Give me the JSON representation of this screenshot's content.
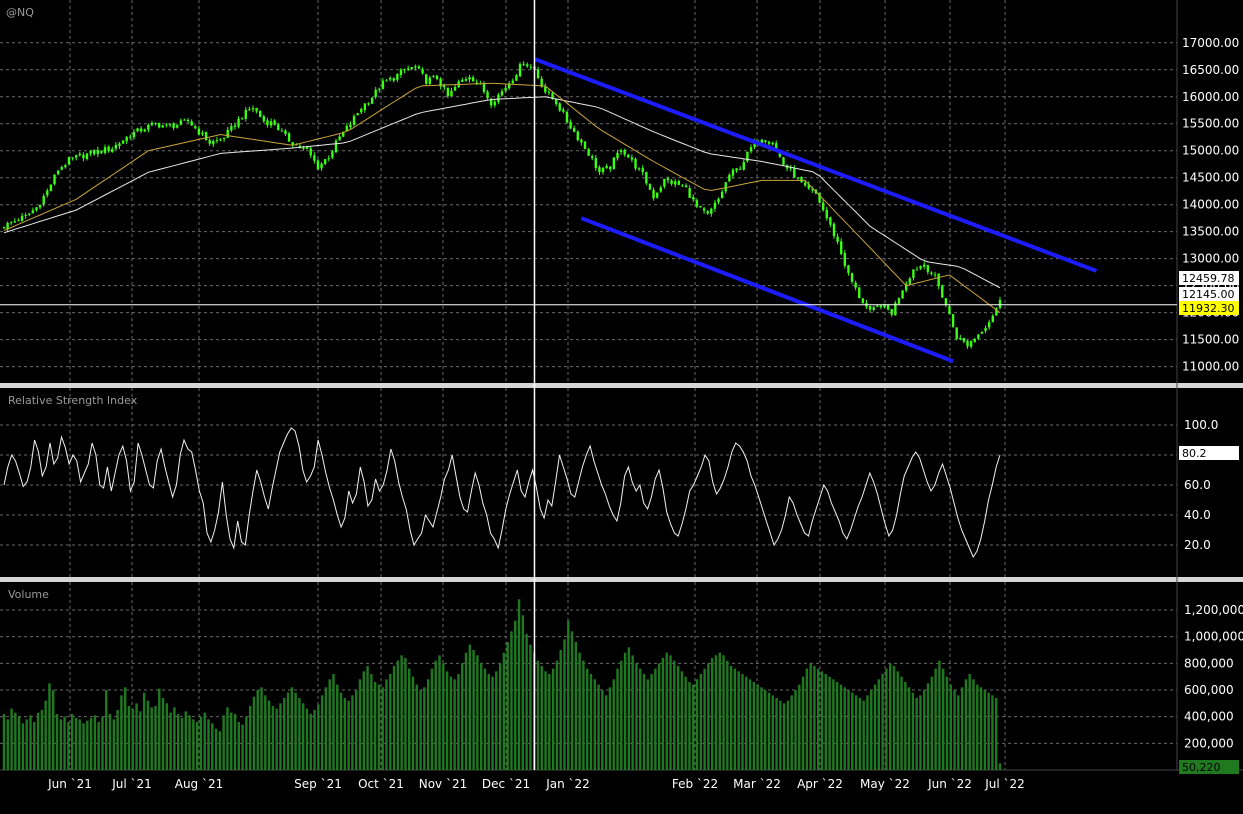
{
  "chart_data": {
    "type": "candlestick",
    "symbol": "@NQ",
    "x_axis_labels": [
      "Jun `21",
      "Jul `21",
      "Aug `21",
      "Sep `21",
      "Oct `21",
      "Nov `21",
      "Dec `21",
      "Jan `22",
      "Feb `22",
      "Mar `22",
      "Apr `22",
      "May `22",
      "Jun `22",
      "Jul `22"
    ],
    "price_panel": {
      "ylim": [
        10900,
        17200
      ],
      "y_ticks": [
        11000,
        11500,
        12000,
        12500,
        13000,
        13500,
        14000,
        14500,
        15000,
        15500,
        16000,
        16500,
        17000
      ],
      "y_tick_labels": [
        "11000.00",
        "11500.00",
        "12000.00",
        "12500.00",
        "13000.00",
        "13500.00",
        "14000.00",
        "14500.00",
        "15000.00",
        "15500.00",
        "16000.00",
        "16500.00",
        "17000.00"
      ],
      "price_points": [
        [
          0,
          13600
        ],
        [
          3,
          13700
        ],
        [
          6,
          13780
        ],
        [
          9,
          13950
        ],
        [
          12,
          14250
        ],
        [
          15,
          14650
        ],
        [
          18,
          14820
        ],
        [
          21,
          14900
        ],
        [
          24,
          14950
        ],
        [
          27,
          15000
        ],
        [
          30,
          15050
        ],
        [
          33,
          15200
        ],
        [
          36,
          15330
        ],
        [
          39,
          15420
        ],
        [
          42,
          15500
        ],
        [
          45,
          15450
        ],
        [
          48,
          15480
        ],
        [
          51,
          15550
        ],
        [
          54,
          15350
        ],
        [
          57,
          15150
        ],
        [
          60,
          15200
        ],
        [
          63,
          15400
        ],
        [
          66,
          15650
        ],
        [
          69,
          15800
        ],
        [
          72,
          15550
        ],
        [
          75,
          15500
        ],
        [
          78,
          15250
        ],
        [
          81,
          15100
        ],
        [
          84,
          15000
        ],
        [
          87,
          14700
        ],
        [
          90,
          14900
        ],
        [
          93,
          15250
        ],
        [
          96,
          15500
        ],
        [
          99,
          15800
        ],
        [
          102,
          16000
        ],
        [
          105,
          16250
        ],
        [
          108,
          16350
        ],
        [
          111,
          16500
        ],
        [
          114,
          16550
        ],
        [
          117,
          16300
        ],
        [
          120,
          16350
        ],
        [
          123,
          16000
        ],
        [
          126,
          16250
        ],
        [
          129,
          16400
        ],
        [
          132,
          16200
        ],
        [
          135,
          15900
        ],
        [
          138,
          16100
        ],
        [
          141,
          16350
        ],
        [
          144,
          16650
        ],
        [
          147,
          16500
        ],
        [
          150,
          16100
        ],
        [
          153,
          15900
        ],
        [
          156,
          15550
        ],
        [
          159,
          15250
        ],
        [
          162,
          14950
        ],
        [
          165,
          14600
        ],
        [
          168,
          14700
        ],
        [
          171,
          15050
        ],
        [
          174,
          14800
        ],
        [
          177,
          14550
        ],
        [
          180,
          14150
        ],
        [
          183,
          14450
        ],
        [
          186,
          14400
        ],
        [
          189,
          14300
        ],
        [
          192,
          13950
        ],
        [
          195,
          13800
        ],
        [
          198,
          14100
        ],
        [
          201,
          14550
        ],
        [
          204,
          14700
        ],
        [
          207,
          15050
        ],
        [
          210,
          15250
        ],
        [
          213,
          15150
        ],
        [
          216,
          14750
        ],
        [
          219,
          14550
        ],
        [
          222,
          14300
        ],
        [
          225,
          14200
        ],
        [
          228,
          13750
        ],
        [
          231,
          13300
        ],
        [
          234,
          12700
        ],
        [
          237,
          12300
        ],
        [
          240,
          12000
        ],
        [
          243,
          12150
        ],
        [
          246,
          12000
        ],
        [
          249,
          12450
        ],
        [
          252,
          12800
        ],
        [
          255,
          12900
        ],
        [
          258,
          12650
        ],
        [
          261,
          12150
        ],
        [
          264,
          11550
        ],
        [
          267,
          11400
        ],
        [
          270,
          11600
        ],
        [
          273,
          11850
        ],
        [
          276,
          12200
        ]
      ],
      "sma_short_points": [
        [
          0,
          13520
        ],
        [
          20,
          14100
        ],
        [
          40,
          15000
        ],
        [
          60,
          15300
        ],
        [
          80,
          15100
        ],
        [
          95,
          15350
        ],
        [
          115,
          16200
        ],
        [
          135,
          16250
        ],
        [
          150,
          16200
        ],
        [
          165,
          15400
        ],
        [
          180,
          14800
        ],
        [
          195,
          14250
        ],
        [
          210,
          14450
        ],
        [
          222,
          14450
        ],
        [
          235,
          13550
        ],
        [
          250,
          12500
        ],
        [
          262,
          12700
        ],
        [
          276,
          12000
        ]
      ],
      "sma_long_points": [
        [
          0,
          13480
        ],
        [
          20,
          13900
        ],
        [
          40,
          14600
        ],
        [
          60,
          14950
        ],
        [
          80,
          15050
        ],
        [
          95,
          15150
        ],
        [
          115,
          15700
        ],
        [
          135,
          15950
        ],
        [
          150,
          16000
        ],
        [
          165,
          15800
        ],
        [
          180,
          15350
        ],
        [
          195,
          14950
        ],
        [
          210,
          14800
        ],
        [
          225,
          14600
        ],
        [
          240,
          13600
        ],
        [
          255,
          12950
        ],
        [
          265,
          12850
        ],
        [
          276,
          12460
        ]
      ],
      "trendline_upper": [
        [
          147,
          16700
        ],
        [
          275,
          13200
        ]
      ],
      "trendline_lower": [
        [
          160,
          13750
        ],
        [
          263,
          11100
        ]
      ],
      "last_values": [
        "12459.78",
        "12145.00",
        "11932.30"
      ],
      "horizontal_line": 12145,
      "vertical_line_bar": 147
    },
    "rsi_panel": {
      "title": "Relative Strength Index",
      "ylim": [
        0,
        110
      ],
      "y_ticks": [
        20,
        40,
        60,
        80,
        100
      ],
      "y_tick_labels": [
        "20.0",
        "40.0",
        "60.0",
        "80.0",
        "100.0"
      ],
      "values": [
        60,
        72,
        80,
        76,
        68,
        59,
        62,
        72,
        90,
        82,
        66,
        72,
        88,
        74,
        78,
        92,
        85,
        74,
        80,
        76,
        62,
        68,
        74,
        88,
        80,
        60,
        58,
        72,
        56,
        68,
        80,
        86,
        76,
        56,
        62,
        88,
        80,
        70,
        60,
        58,
        76,
        84,
        72,
        62,
        52,
        60,
        80,
        90,
        84,
        82,
        70,
        56,
        48,
        28,
        22,
        30,
        42,
        62,
        40,
        24,
        18,
        36,
        22,
        20,
        40,
        56,
        70,
        62,
        52,
        44,
        58,
        70,
        82,
        88,
        94,
        98,
        96,
        86,
        70,
        62,
        66,
        72,
        90,
        80,
        68,
        58,
        50,
        40,
        32,
        38,
        56,
        48,
        54,
        72,
        62,
        46,
        50,
        64,
        56,
        60,
        70,
        84,
        76,
        62,
        52,
        44,
        30,
        20,
        24,
        28,
        40,
        36,
        32,
        42,
        52,
        64,
        70,
        80,
        66,
        52,
        44,
        42,
        56,
        68,
        60,
        48,
        40,
        28,
        24,
        18,
        30,
        44,
        54,
        62,
        70,
        56,
        52,
        62,
        70,
        58,
        44,
        38,
        50,
        46,
        62,
        80,
        72,
        64,
        54,
        52,
        62,
        72,
        80,
        86,
        76,
        68,
        60,
        54,
        46,
        40,
        36,
        48,
        66,
        72,
        62,
        56,
        60,
        48,
        44,
        52,
        64,
        70,
        58,
        42,
        34,
        28,
        26,
        34,
        44,
        56,
        60,
        66,
        72,
        80,
        76,
        62,
        54,
        58,
        64,
        72,
        82,
        88,
        86,
        82,
        76,
        66,
        60,
        52,
        44,
        36,
        28,
        20,
        24,
        30,
        40,
        52,
        48,
        40,
        34,
        28,
        26,
        36,
        44,
        52,
        60,
        56,
        48,
        42,
        36,
        28,
        24,
        30,
        38,
        46,
        52,
        60,
        68,
        62,
        54,
        44,
        34,
        26,
        30,
        40,
        54,
        66,
        72,
        78,
        82,
        78,
        70,
        62,
        56,
        60,
        68,
        74,
        66,
        58,
        48,
        38,
        30,
        24,
        18,
        12,
        16,
        24,
        36,
        50,
        60,
        72,
        80
      ],
      "last_value_label": "80.2"
    },
    "volume_panel": {
      "title": "Volume",
      "ylim": [
        0,
        1350000
      ],
      "y_ticks": [
        200000,
        400000,
        600000,
        800000,
        1000000,
        1200000
      ],
      "y_tick_labels": [
        "200,000",
        "400,000",
        "600,000",
        "800,000",
        "1,000,000",
        "1,200,000"
      ],
      "values": [
        420000,
        380000,
        460000,
        430000,
        400000,
        350000,
        380000,
        410000,
        360000,
        430000,
        450000,
        520000,
        650000,
        600000,
        420000,
        380000,
        400000,
        360000,
        420000,
        390000,
        380000,
        350000,
        370000,
        390000,
        410000,
        360000,
        400000,
        600000,
        420000,
        380000,
        450000,
        560000,
        620000,
        480000,
        460000,
        500000,
        440000,
        580000,
        520000,
        470000,
        480000,
        610000,
        540000,
        500000,
        430000,
        470000,
        420000,
        390000,
        440000,
        410000,
        380000,
        360000,
        400000,
        430000,
        380000,
        350000,
        310000,
        290000,
        410000,
        470000,
        430000,
        420000,
        360000,
        340000,
        400000,
        480000,
        550000,
        600000,
        620000,
        560000,
        520000,
        480000,
        460000,
        500000,
        540000,
        580000,
        620000,
        580000,
        540000,
        500000,
        460000,
        420000,
        450000,
        490000,
        560000,
        620000,
        680000,
        720000,
        640000,
        580000,
        540000,
        520000,
        560000,
        600000,
        680000,
        740000,
        780000,
        720000,
        660000,
        640000,
        620000,
        680000,
        720000,
        780000,
        820000,
        860000,
        840000,
        760000,
        700000,
        640000,
        600000,
        620000,
        680000,
        760000,
        820000,
        860000,
        800000,
        740000,
        700000,
        680000,
        720000,
        800000,
        880000,
        940000,
        900000,
        860000,
        800000,
        760000,
        720000,
        700000,
        740000,
        800000,
        880000,
        960000,
        1040000,
        1120000,
        1280000,
        1160000,
        1020000,
        940000,
        880000,
        820000,
        780000,
        740000,
        720000,
        760000,
        820000,
        900000,
        980000,
        1120000,
        1040000,
        960000,
        880000,
        820000,
        760000,
        720000,
        680000,
        640000,
        600000,
        560000,
        620000,
        680000,
        760000,
        820000,
        880000,
        920000,
        860000,
        800000,
        760000,
        720000,
        680000,
        720000,
        760000,
        800000,
        840000,
        880000,
        860000,
        820000,
        780000,
        740000,
        700000,
        660000,
        640000,
        680000,
        720000,
        760000,
        800000,
        840000,
        860000,
        880000,
        860000,
        820000,
        780000,
        760000,
        740000,
        720000,
        700000,
        680000,
        660000,
        640000,
        620000,
        600000,
        580000,
        560000,
        540000,
        520000,
        500000,
        520000,
        560000,
        600000,
        640000,
        700000,
        760000,
        800000,
        780000,
        760000,
        740000,
        720000,
        700000,
        680000,
        660000,
        640000,
        620000,
        600000,
        580000,
        560000,
        540000,
        520000,
        560000,
        600000,
        640000,
        680000,
        720000,
        760000,
        800000,
        780000,
        740000,
        700000,
        660000,
        620000,
        580000,
        540000,
        560000,
        600000,
        650000,
        700000,
        760000,
        820000,
        760000,
        700000,
        640000,
        600000,
        560000,
        620000,
        680000,
        720000,
        680000,
        640000,
        620000,
        600000,
        580000,
        560000,
        540000,
        50220
      ],
      "last_value_label": "50,220"
    }
  }
}
